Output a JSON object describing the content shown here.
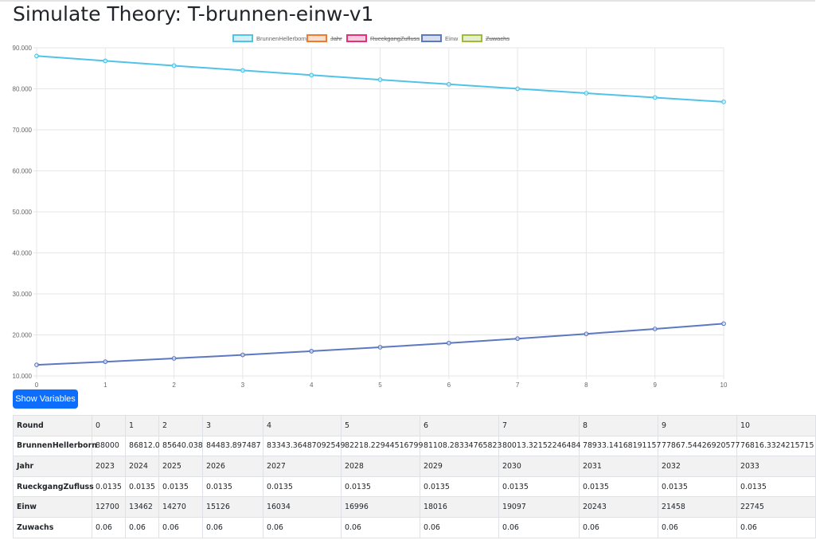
{
  "page": {
    "title": "Simulate Theory: T-brunnen-einw-v1"
  },
  "toolbar": {
    "show_variables_label": "Show Variables"
  },
  "colors": {
    "BrunnenHellerborn": "#4fc3e8",
    "Jahr": "#f07b2f",
    "RueckgangZufluss": "#e6317a",
    "Einw": "#5b78c0",
    "Zuwachs": "#9bbd3a",
    "button": "#0d6efd"
  },
  "chart_data": {
    "type": "line",
    "x": [
      0,
      1,
      2,
      3,
      4,
      5,
      6,
      7,
      8,
      9,
      10
    ],
    "ylim": [
      10000,
      90000
    ],
    "y_ticks": [
      "10.000",
      "20.000",
      "30.000",
      "40.000",
      "50.000",
      "60.000",
      "70.000",
      "80.000",
      "90.000"
    ],
    "x_ticks": [
      "0",
      "1",
      "2",
      "3",
      "4",
      "5",
      "6",
      "7",
      "8",
      "9",
      "10"
    ],
    "grid": true,
    "legend_position": "top-center",
    "series": [
      {
        "name": "BrunnenHellerborn",
        "hidden": false,
        "values": [
          88000,
          86812.0,
          85640.038,
          84483.897487,
          83343.36487092549,
          82218.22944516799,
          81108.28334765823,
          80013.32152246484,
          78933.14168191157,
          77867.54426920577,
          76816.3324215715
        ]
      },
      {
        "name": "Jahr",
        "hidden": true,
        "values": [
          2023,
          2024,
          2025,
          2026,
          2027,
          2028,
          2029,
          2030,
          2031,
          2032,
          2033
        ]
      },
      {
        "name": "RueckgangZufluss",
        "hidden": true,
        "values": [
          0.0135,
          0.0135,
          0.0135,
          0.0135,
          0.0135,
          0.0135,
          0.0135,
          0.0135,
          0.0135,
          0.0135,
          0.0135
        ]
      },
      {
        "name": "Einw",
        "hidden": false,
        "values": [
          12700,
          13462,
          14270,
          15126,
          16034,
          16996,
          18016,
          19097,
          20243,
          21458,
          22745
        ]
      },
      {
        "name": "Zuwachs",
        "hidden": true,
        "values": [
          0.06,
          0.06,
          0.06,
          0.06,
          0.06,
          0.06,
          0.06,
          0.06,
          0.06,
          0.06,
          0.06
        ]
      }
    ]
  },
  "table": {
    "rows": [
      {
        "label": "Round",
        "cells": [
          "0",
          "1",
          "2",
          "3",
          "4",
          "5",
          "6",
          "7",
          "8",
          "9",
          "10"
        ]
      },
      {
        "label": "BrunnenHellerborn",
        "cells": [
          "88000",
          "86812.0",
          "85640.038",
          "84483.897487",
          "83343.36487092549",
          "82218.22944516799",
          "81108.28334765823",
          "80013.32152246484",
          "78933.14168191157",
          "77867.54426920577",
          "76816.3324215715"
        ]
      },
      {
        "label": "Jahr",
        "cells": [
          "2023",
          "2024",
          "2025",
          "2026",
          "2027",
          "2028",
          "2029",
          "2030",
          "2031",
          "2032",
          "2033"
        ]
      },
      {
        "label": "RueckgangZufluss",
        "cells": [
          "0.0135",
          "0.0135",
          "0.0135",
          "0.0135",
          "0.0135",
          "0.0135",
          "0.0135",
          "0.0135",
          "0.0135",
          "0.0135",
          "0.0135"
        ]
      },
      {
        "label": "Einw",
        "cells": [
          "12700",
          "13462",
          "14270",
          "15126",
          "16034",
          "16996",
          "18016",
          "19097",
          "20243",
          "21458",
          "22745"
        ]
      },
      {
        "label": "Zuwachs",
        "cells": [
          "0.06",
          "0.06",
          "0.06",
          "0.06",
          "0.06",
          "0.06",
          "0.06",
          "0.06",
          "0.06",
          "0.06",
          "0.06"
        ]
      }
    ]
  }
}
